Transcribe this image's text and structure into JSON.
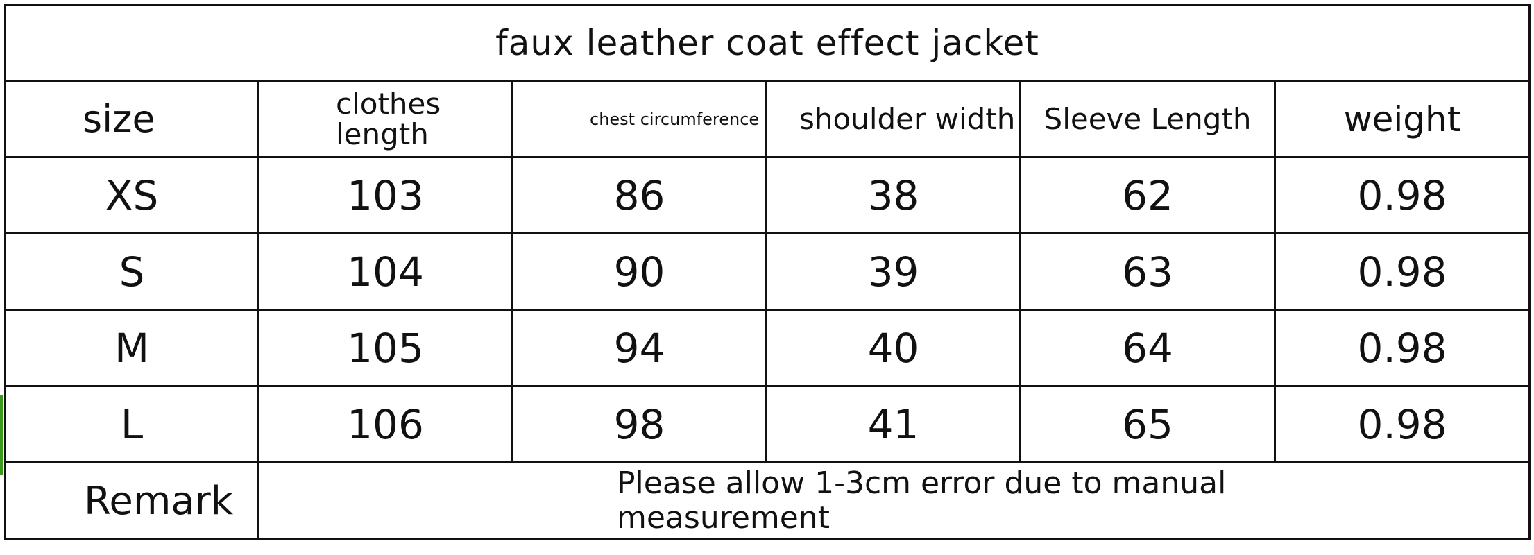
{
  "title": "faux leather coat effect jacket",
  "headers": [
    "size",
    "clothes length",
    "chest circumference",
    "shoulder width",
    "Sleeve Length",
    "weight"
  ],
  "rows": [
    [
      "XS",
      "103",
      "86",
      "38",
      "62",
      "0.98"
    ],
    [
      "S",
      "104",
      "90",
      "39",
      "63",
      "0.98"
    ],
    [
      "M",
      "105",
      "94",
      "40",
      "64",
      "0.98"
    ],
    [
      "L",
      "106",
      "98",
      "41",
      "65",
      "0.98"
    ]
  ],
  "remark": {
    "label": "Remark",
    "text": "Please allow 1-3cm error due to manual measurement"
  }
}
